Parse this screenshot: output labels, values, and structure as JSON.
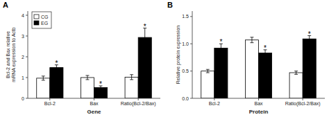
{
  "chart_data": [
    {
      "type": "bar",
      "title": "A",
      "categories": [
        "Bcl-2",
        "Bax",
        "Ratio(Bcl-2/Bax)"
      ],
      "series": [
        {
          "name": "CG",
          "color": "white",
          "values": [
            0.97,
            1.0,
            1.02
          ],
          "errors": [
            0.1,
            0.1,
            0.12
          ]
        },
        {
          "name": "EG",
          "color": "black",
          "values": [
            1.48,
            0.52,
            2.93
          ],
          "errors": [
            0.13,
            0.08,
            0.45
          ],
          "annotations": [
            "*",
            "*",
            "*"
          ]
        }
      ],
      "xlabel": "Gene",
      "ylabel": "Bcl-2 and Bax relative\nmRNA expression to Actb",
      "ylim": [
        0,
        4.2
      ],
      "yticks": [
        0,
        1,
        2,
        3,
        4
      ],
      "grid": false,
      "legend": "upper left"
    },
    {
      "type": "bar",
      "title": "B",
      "categories": [
        "Bcl-2",
        "Bax",
        "Ratio(Bcl-2/Bax)"
      ],
      "series": [
        {
          "name": "CG",
          "color": "white",
          "values": [
            0.5,
            1.07,
            0.47
          ],
          "errors": [
            0.03,
            0.05,
            0.03
          ]
        },
        {
          "name": "EG",
          "color": "black",
          "values": [
            0.92,
            0.83,
            1.09
          ],
          "errors": [
            0.08,
            0.06,
            0.06
          ],
          "annotations": [
            "*",
            "*",
            "*"
          ]
        }
      ],
      "xlabel": "Protein",
      "ylabel": "Relative protein expression",
      "ylim": [
        0,
        1.6
      ],
      "yticks": [
        {
          "value": 0.0,
          "label": "0.0"
        },
        0.5,
        {
          "value": 1.0,
          "label": "1.0"
        },
        1.5
      ],
      "grid": false
    }
  ]
}
